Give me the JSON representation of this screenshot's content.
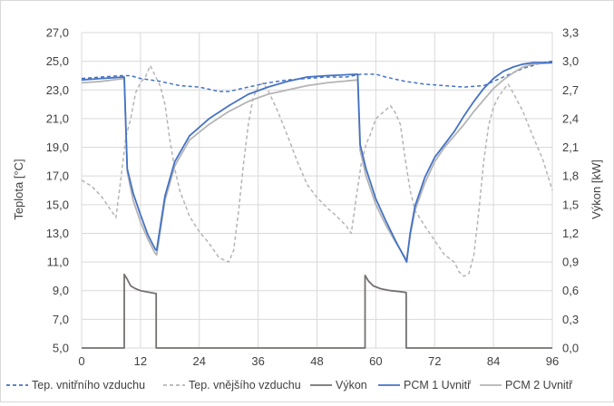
{
  "chart_data": {
    "type": "line",
    "xlabel": "",
    "ylabel": "Teplota [°C]",
    "y2label": "Výkon [kW]",
    "x_ticks": [
      0,
      12,
      24,
      36,
      48,
      60,
      72,
      84,
      96
    ],
    "y_ticks": [
      "5,0",
      "7,0",
      "9,0",
      "11,0",
      "13,0",
      "15,0",
      "17,0",
      "19,0",
      "21,0",
      "23,0",
      "25,0",
      "27,0"
    ],
    "y2_ticks": [
      "0,0",
      "0,3",
      "0,6",
      "0,9",
      "1,2",
      "1,5",
      "1,8",
      "2,1",
      "2,4",
      "2,7",
      "3,0",
      "3,3"
    ],
    "xlim": [
      0,
      96
    ],
    "ylim": [
      5,
      27
    ],
    "y2lim": [
      0,
      3.3
    ],
    "grid": true,
    "legend_position": "bottom",
    "series": [
      {
        "name": "Tep. vnitřního vzduchu",
        "axis": "left",
        "color": "#4472c4",
        "dash": "dashed",
        "points": [
          [
            0,
            23.8
          ],
          [
            4,
            23.9
          ],
          [
            8,
            24.0
          ],
          [
            10,
            24.0
          ],
          [
            12,
            23.8
          ],
          [
            16,
            23.6
          ],
          [
            20,
            23.3
          ],
          [
            24,
            23.2
          ],
          [
            28,
            22.9
          ],
          [
            30,
            22.9
          ],
          [
            34,
            23.2
          ],
          [
            38,
            23.5
          ],
          [
            42,
            23.7
          ],
          [
            46,
            23.8
          ],
          [
            50,
            23.9
          ],
          [
            54,
            23.9
          ],
          [
            57,
            24.1
          ],
          [
            60,
            24.1
          ],
          [
            62,
            23.9
          ],
          [
            66,
            23.6
          ],
          [
            70,
            23.4
          ],
          [
            74,
            23.3
          ],
          [
            78,
            23.2
          ],
          [
            82,
            23.3
          ],
          [
            86,
            23.9
          ],
          [
            90,
            24.5
          ],
          [
            94,
            24.9
          ],
          [
            96,
            25.0
          ]
        ]
      },
      {
        "name": "Tep. vnějšího vzduchu",
        "axis": "left",
        "color": "#b4b4b4",
        "dash": "dashed",
        "points": [
          [
            0,
            16.7
          ],
          [
            2,
            16.3
          ],
          [
            4,
            15.6
          ],
          [
            6,
            14.6
          ],
          [
            7,
            14.1
          ],
          [
            8,
            16.8
          ],
          [
            9,
            19.7
          ],
          [
            10,
            21.0
          ],
          [
            11,
            22.8
          ],
          [
            12,
            23.5
          ],
          [
            13,
            23.9
          ],
          [
            14,
            24.7
          ],
          [
            15,
            24.0
          ],
          [
            16,
            23.3
          ],
          [
            17,
            22.0
          ],
          [
            18,
            19.5
          ],
          [
            19,
            17.5
          ],
          [
            20,
            16.0
          ],
          [
            22,
            14.2
          ],
          [
            24,
            13.1
          ],
          [
            26,
            12.3
          ],
          [
            28,
            11.3
          ],
          [
            30,
            11.0
          ],
          [
            31,
            11.8
          ],
          [
            32,
            14.5
          ],
          [
            33,
            17.8
          ],
          [
            34,
            20.6
          ],
          [
            35,
            22.5
          ],
          [
            36,
            23.2
          ],
          [
            37,
            23.5
          ],
          [
            38,
            23.0
          ],
          [
            40,
            21.5
          ],
          [
            42,
            19.8
          ],
          [
            44,
            18.0
          ],
          [
            46,
            16.4
          ],
          [
            48,
            15.5
          ],
          [
            50,
            14.8
          ],
          [
            52,
            14.2
          ],
          [
            54,
            13.5
          ],
          [
            55,
            13.0
          ],
          [
            56,
            15.5
          ],
          [
            57,
            17.8
          ],
          [
            58,
            19.2
          ],
          [
            59,
            20.0
          ],
          [
            60,
            21.0
          ],
          [
            62,
            21.6
          ],
          [
            63,
            21.9
          ],
          [
            64,
            21.4
          ],
          [
            65,
            20.6
          ],
          [
            66,
            18.2
          ],
          [
            67,
            16.0
          ],
          [
            68,
            14.6
          ],
          [
            70,
            13.5
          ],
          [
            72,
            12.5
          ],
          [
            74,
            11.5
          ],
          [
            76,
            11.0
          ],
          [
            77,
            10.3
          ],
          [
            78,
            10.0
          ],
          [
            79,
            10.2
          ],
          [
            80,
            11.5
          ],
          [
            81,
            14.5
          ],
          [
            82,
            18.0
          ],
          [
            83,
            20.5
          ],
          [
            84,
            21.8
          ],
          [
            85,
            22.5
          ],
          [
            86,
            23.0
          ],
          [
            87,
            23.4
          ],
          [
            88,
            22.8
          ],
          [
            90,
            21.5
          ],
          [
            92,
            19.8
          ],
          [
            94,
            18.2
          ],
          [
            96,
            16.0
          ]
        ]
      },
      {
        "name": "Výkon",
        "axis": "right",
        "color": "#767171",
        "dash": "solid",
        "points": [
          [
            0,
            0.0
          ],
          [
            8.7,
            0.0
          ],
          [
            8.7,
            0.77
          ],
          [
            9.3,
            0.72
          ],
          [
            10,
            0.65
          ],
          [
            11,
            0.62
          ],
          [
            12,
            0.6
          ],
          [
            13,
            0.59
          ],
          [
            14,
            0.58
          ],
          [
            15.2,
            0.57
          ],
          [
            15.2,
            0.0
          ],
          [
            57.8,
            0.0
          ],
          [
            57.8,
            0.76
          ],
          [
            58.5,
            0.7
          ],
          [
            59.5,
            0.65
          ],
          [
            61,
            0.62
          ],
          [
            63,
            0.6
          ],
          [
            65,
            0.59
          ],
          [
            66.2,
            0.58
          ],
          [
            66.2,
            0.0
          ],
          [
            96,
            0.0
          ]
        ]
      },
      {
        "name": "PCM 1 Uvnitř",
        "axis": "left",
        "color": "#4472c4",
        "dash": "solid",
        "points": [
          [
            0,
            23.7
          ],
          [
            4,
            23.8
          ],
          [
            8.7,
            23.9
          ],
          [
            9.3,
            17.5
          ],
          [
            10.5,
            15.8
          ],
          [
            12,
            14.3
          ],
          [
            13.5,
            12.9
          ],
          [
            15,
            11.9
          ],
          [
            15.3,
            11.8
          ],
          [
            17,
            15.6
          ],
          [
            19,
            18.0
          ],
          [
            22,
            19.8
          ],
          [
            26,
            21.0
          ],
          [
            30,
            21.9
          ],
          [
            34,
            22.7
          ],
          [
            38,
            23.2
          ],
          [
            42,
            23.6
          ],
          [
            46,
            23.9
          ],
          [
            50,
            24.0
          ],
          [
            56.3,
            24.1
          ],
          [
            56.8,
            19.2
          ],
          [
            58,
            17.5
          ],
          [
            60,
            15.4
          ],
          [
            62,
            13.9
          ],
          [
            64,
            12.5
          ],
          [
            66,
            11.2
          ],
          [
            66.3,
            11.0
          ],
          [
            67,
            13.0
          ],
          [
            68,
            14.9
          ],
          [
            70,
            16.9
          ],
          [
            72,
            18.3
          ],
          [
            74,
            19.2
          ],
          [
            76,
            20.1
          ],
          [
            78,
            21.2
          ],
          [
            80,
            22.2
          ],
          [
            82,
            23.1
          ],
          [
            84,
            23.8
          ],
          [
            86,
            24.3
          ],
          [
            88,
            24.6
          ],
          [
            90,
            24.8
          ],
          [
            92,
            24.9
          ],
          [
            96,
            24.9
          ]
        ]
      },
      {
        "name": "PCM 2 Uvnitř",
        "axis": "left",
        "color": "#b4b4b4",
        "dash": "solid",
        "points": [
          [
            0,
            23.5
          ],
          [
            4,
            23.6
          ],
          [
            8.7,
            23.8
          ],
          [
            9.3,
            17.3
          ],
          [
            10.5,
            15.3
          ],
          [
            12,
            13.8
          ],
          [
            13.5,
            12.6
          ],
          [
            15,
            11.6
          ],
          [
            15.3,
            11.5
          ],
          [
            17,
            15.3
          ],
          [
            19,
            17.7
          ],
          [
            22,
            19.5
          ],
          [
            26,
            20.6
          ],
          [
            30,
            21.5
          ],
          [
            34,
            22.2
          ],
          [
            38,
            22.7
          ],
          [
            42,
            23.0
          ],
          [
            46,
            23.3
          ],
          [
            50,
            23.5
          ],
          [
            56.3,
            23.7
          ],
          [
            56.8,
            18.8
          ],
          [
            58,
            17.0
          ],
          [
            60,
            15.0
          ],
          [
            62,
            13.6
          ],
          [
            64,
            12.4
          ],
          [
            66,
            11.3
          ],
          [
            66.3,
            11.2
          ],
          [
            67,
            12.8
          ],
          [
            68,
            14.6
          ],
          [
            70,
            16.5
          ],
          [
            72,
            18.0
          ],
          [
            74,
            19.0
          ],
          [
            76,
            19.8
          ],
          [
            78,
            20.6
          ],
          [
            80,
            21.5
          ],
          [
            82,
            22.3
          ],
          [
            84,
            23.1
          ],
          [
            86,
            23.7
          ],
          [
            88,
            24.2
          ],
          [
            90,
            24.6
          ],
          [
            92,
            24.8
          ],
          [
            96,
            24.9
          ]
        ]
      }
    ]
  }
}
